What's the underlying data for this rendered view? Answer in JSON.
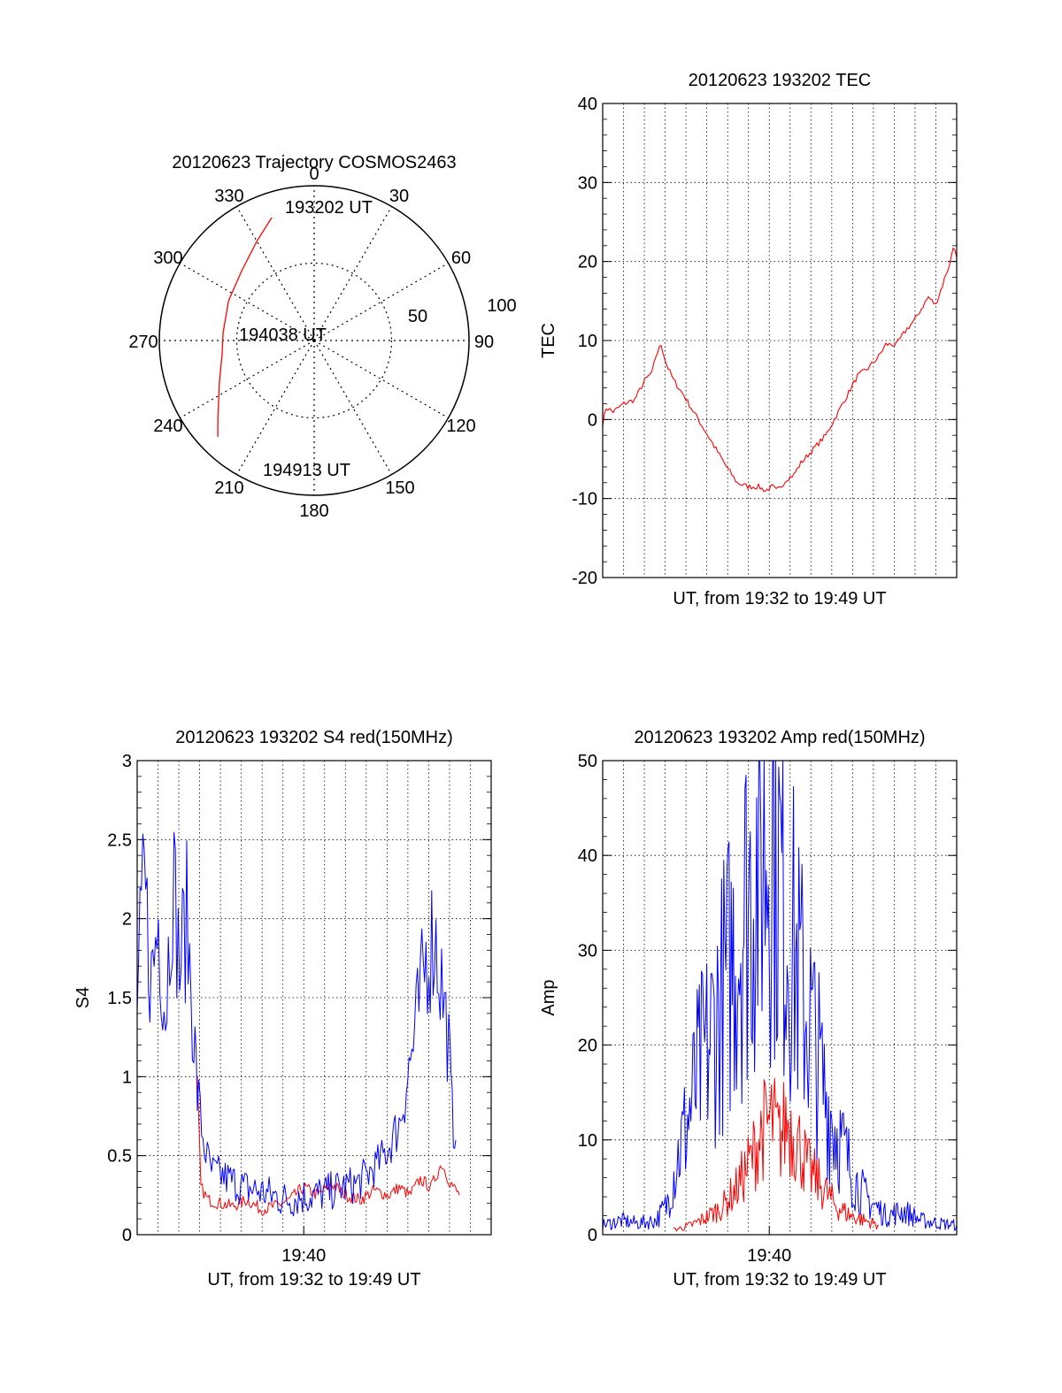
{
  "chart_data": [
    {
      "type": "polar",
      "title": "20120623 Trajectory COSMOS2463",
      "azimuth_labels": [
        "0",
        "30",
        "60",
        "90",
        "120",
        "150",
        "180",
        "210",
        "240",
        "270",
        "300",
        "330"
      ],
      "radial_labels": [
        "50",
        "100"
      ],
      "radial_values": [
        50,
        100
      ],
      "start_label": "193202 UT",
      "mid_label": "194038 UT",
      "end_label": "194913 UT",
      "trajectory": [
        {
          "az": 341,
          "zen": 84
        },
        {
          "az": 330,
          "zen": 74
        },
        {
          "az": 314,
          "zen": 65
        },
        {
          "az": 295,
          "zen": 61
        },
        {
          "az": 275,
          "zen": 59
        },
        {
          "az": 262,
          "zen": 60
        },
        {
          "az": 246,
          "zen": 67
        },
        {
          "az": 231,
          "zen": 80
        },
        {
          "az": 225,
          "zen": 88
        }
      ],
      "colors": {
        "trajectory": "#ff0000"
      }
    },
    {
      "type": "line",
      "title": "20120623 193202 TEC",
      "xlabel": "UT, from 19:32 to 19:49 UT",
      "ylabel": "TEC",
      "ylim": [
        -20,
        40
      ],
      "yticks": [
        "-20",
        "-10",
        "0",
        "10",
        "20",
        "30",
        "40"
      ],
      "grid": true,
      "series": [
        {
          "color": "#ff0000",
          "x": [
            0,
            0.01,
            0.03,
            0.06,
            0.09,
            0.12,
            0.14,
            0.15,
            0.165,
            0.18,
            0.2,
            0.23,
            0.27,
            0.31,
            0.35,
            0.38,
            0.41,
            0.44,
            0.46,
            0.48,
            0.49,
            0.5,
            0.52,
            0.54,
            0.56,
            0.58,
            0.6,
            0.63,
            0.66,
            0.69,
            0.72,
            0.75,
            0.78,
            0.8,
            0.83,
            0.86,
            0.88,
            0.9,
            0.92,
            0.94,
            0.96,
            0.97,
            0.98,
            0.99,
            1.0
          ],
          "y": [
            -0.5,
            1.5,
            1,
            2,
            2.5,
            5,
            6,
            8,
            9.5,
            7,
            5,
            3,
            0,
            -3,
            -6,
            -8,
            -8.5,
            -8.5,
            -9,
            -8.5,
            -9,
            -8.7,
            -7.5,
            -7,
            -5.5,
            -4.5,
            -3.5,
            -2,
            0.5,
            3,
            5.5,
            6.5,
            8,
            9.5,
            9.5,
            11.5,
            12.5,
            14,
            15.5,
            14.5,
            17,
            18.5,
            19.5,
            22,
            20.5
          ]
        }
      ]
    },
    {
      "type": "line",
      "title": "20120623 193202 S4 red(150MHz)",
      "xlabel": "UT, from 19:32 to 19:49 UT",
      "ylabel": "S4",
      "ylim": [
        0,
        3
      ],
      "yticks": [
        "0",
        "0.5",
        "1",
        "1.5",
        "2",
        "2.5",
        "3"
      ],
      "xtick_label": "19:40",
      "grid": true,
      "series": [
        {
          "color": "#ff0000",
          "x": [
            0.17,
            0.18,
            0.2,
            0.23,
            0.27,
            0.31,
            0.35,
            0.39,
            0.43,
            0.47,
            0.51,
            0.55,
            0.59,
            0.63,
            0.67,
            0.71,
            0.74,
            0.77,
            0.8,
            0.83,
            0.86,
            0.88,
            0.9,
            0.91
          ],
          "y": [
            0.95,
            0.3,
            0.22,
            0.2,
            0.18,
            0.22,
            0.16,
            0.18,
            0.22,
            0.3,
            0.25,
            0.32,
            0.25,
            0.22,
            0.28,
            0.25,
            0.3,
            0.25,
            0.35,
            0.3,
            0.45,
            0.35,
            0.28,
            0.25
          ]
        },
        {
          "color": "#0000ff",
          "x": [
            0.0,
            0.02,
            0.04,
            0.06,
            0.08,
            0.1,
            0.12,
            0.14,
            0.16,
            0.17,
            0.19,
            0.21,
            0.23,
            0.26,
            0.3,
            0.34,
            0.38,
            0.42,
            0.46,
            0.5,
            0.54,
            0.58,
            0.62,
            0.65,
            0.68,
            0.71,
            0.74,
            0.76,
            0.78,
            0.8,
            0.82,
            0.84,
            0.86,
            0.88,
            0.89,
            0.9
          ],
          "y": [
            1.5,
            2.2,
            1.6,
            2.0,
            1.4,
            2.3,
            1.7,
            2.0,
            1.3,
            0.9,
            0.55,
            0.4,
            0.38,
            0.35,
            0.3,
            0.28,
            0.25,
            0.22,
            0.24,
            0.25,
            0.27,
            0.3,
            0.32,
            0.38,
            0.45,
            0.55,
            0.7,
            0.95,
            1.2,
            1.5,
            1.8,
            1.9,
            1.6,
            1.2,
            0.75,
            0.6
          ]
        }
      ]
    },
    {
      "type": "line",
      "title": "20120623 193202 Amp red(150MHz)",
      "xlabel": "UT, from 19:32 to 19:49 UT",
      "ylabel": "Amp",
      "ylim": [
        0,
        50
      ],
      "yticks": [
        "0",
        "10",
        "20",
        "30",
        "40",
        "50"
      ],
      "xtick_label": "19:40",
      "grid": true,
      "series": [
        {
          "color": "#0000ff",
          "x": [
            0.0,
            0.05,
            0.1,
            0.15,
            0.18,
            0.21,
            0.24,
            0.27,
            0.3,
            0.33,
            0.36,
            0.39,
            0.42,
            0.45,
            0.48,
            0.5,
            0.53,
            0.56,
            0.59,
            0.62,
            0.65,
            0.68,
            0.71,
            0.74,
            0.77,
            0.8,
            0.85,
            0.9,
            0.95,
            1.0
          ],
          "y": [
            1,
            1.5,
            1.2,
            1.5,
            3,
            8,
            12,
            17,
            20,
            24,
            28,
            33,
            37,
            40,
            44,
            38,
            32,
            26,
            22,
            16,
            12,
            9,
            6,
            4,
            3,
            2,
            2.5,
            1.5,
            1.2,
            1
          ]
        },
        {
          "color": "#ff0000",
          "x": [
            0.2,
            0.25,
            0.3,
            0.34,
            0.38,
            0.42,
            0.45,
            0.48,
            0.5,
            0.52,
            0.55,
            0.58,
            0.62,
            0.66,
            0.7,
            0.74,
            0.78
          ],
          "y": [
            0.5,
            1,
            2,
            3,
            5,
            8,
            11,
            12,
            10,
            12,
            10,
            7,
            5,
            3,
            2,
            1.5,
            1
          ]
        }
      ]
    }
  ]
}
